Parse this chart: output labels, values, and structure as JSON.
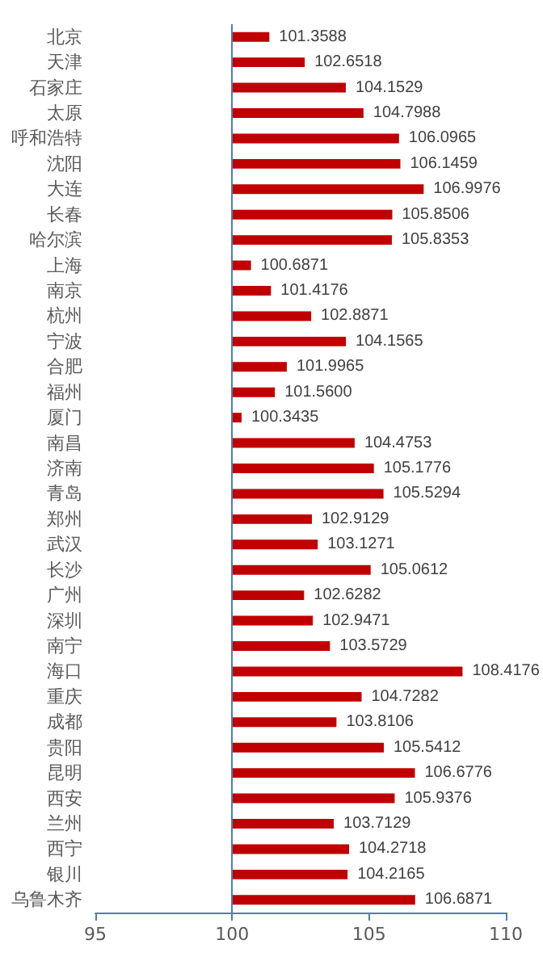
{
  "chart_data": {
    "type": "bar",
    "orientation": "horizontal",
    "categories": [
      "北京",
      "天津",
      "石家庄",
      "太原",
      "呼和浩特",
      "沈阳",
      "大连",
      "长春",
      "哈尔滨",
      "上海",
      "南京",
      "杭州",
      "宁波",
      "合肥",
      "福州",
      "厦门",
      "南昌",
      "济南",
      "青岛",
      "郑州",
      "武汉",
      "长沙",
      "广州",
      "深圳",
      "南宁",
      "海口",
      "重庆",
      "成都",
      "贵阳",
      "昆明",
      "西安",
      "兰州",
      "西宁",
      "银川",
      "乌鲁木齐"
    ],
    "base": [
      100,
      100,
      100,
      100,
      100,
      100,
      100,
      100,
      100,
      100,
      100,
      100,
      100,
      100,
      100,
      100,
      100,
      100,
      100,
      100,
      100,
      100,
      100,
      100,
      100,
      100,
      100,
      100,
      100,
      100,
      100,
      100,
      100,
      100,
      100
    ],
    "values": [
      1.3588,
      2.6518,
      4.1529,
      4.7988,
      6.0965,
      6.1459,
      6.9976,
      5.8506,
      5.8353,
      0.6871,
      1.4176,
      2.8871,
      4.1565,
      1.9965,
      1.56,
      0.3435,
      4.4753,
      5.1776,
      5.5294,
      2.9129,
      3.1271,
      5.0612,
      2.6282,
      2.9471,
      3.5729,
      8.4176,
      4.7282,
      3.8106,
      5.5412,
      6.6776,
      5.9376,
      3.7129,
      4.2718,
      4.2165,
      6.6871
    ],
    "value_labels": [
      "101.3588",
      "102.6518",
      "104.1529",
      "104.7988",
      "106.0965",
      "106.1459",
      "106.9976",
      "105.8506",
      "105.8353",
      "100.6871",
      "101.4176",
      "102.8871",
      "104.1565",
      "101.9965",
      "101.5600",
      "100.3435",
      "104.4753",
      "105.1776",
      "105.5294",
      "102.9129",
      "103.1271",
      "105.0612",
      "102.6282",
      "102.9471",
      "103.5729",
      "108.4176",
      "104.7282",
      "103.8106",
      "105.5412",
      "106.6776",
      "105.9376",
      "103.7129",
      "104.2718",
      "104.2165",
      "106.6871"
    ],
    "color": "#c00000",
    "xlim": [
      95,
      110
    ],
    "xticks": [
      95,
      100,
      105,
      110
    ],
    "ref_lines": [
      {
        "axis": "x",
        "value": 100,
        "color": "#4a7ebb"
      }
    ],
    "grid": false
  }
}
